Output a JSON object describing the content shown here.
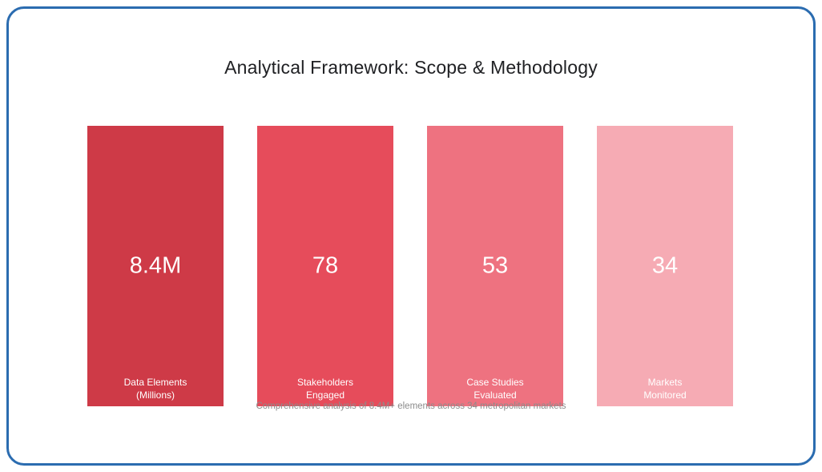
{
  "title": "Analytical Framework: Scope & Methodology",
  "caption": "Comprehensive analysis of 8.4M+ elements across 34 metropolitan markets",
  "colors": {
    "frame_border": "#2b6cb0",
    "title_text": "#202124",
    "caption_text": "#8c8c8c",
    "card_text": "#ffffff"
  },
  "cards": [
    {
      "value": "8.4M",
      "label_line1": "Data Elements",
      "label_line2": "(Millions)",
      "color": "#ce3a47"
    },
    {
      "value": "78",
      "label_line1": "Stakeholders",
      "label_line2": "Engaged",
      "color": "#e64c5b"
    },
    {
      "value": "53",
      "label_line1": "Case Studies",
      "label_line2": "Evaluated",
      "color": "#ee7280"
    },
    {
      "value": "34",
      "label_line1": "Markets",
      "label_line2": "Monitored",
      "color": "#f6abb4"
    }
  ],
  "chart_data": {
    "type": "bar",
    "title": "Analytical Framework: Scope & Methodology",
    "categories": [
      "Data Elements (Millions)",
      "Stakeholders Engaged",
      "Case Studies Evaluated",
      "Markets Monitored"
    ],
    "values": [
      8.4,
      78,
      53,
      34
    ],
    "value_labels": [
      "8.4M",
      "78",
      "53",
      "34"
    ],
    "annotation": "Comprehensive analysis of 8.4M+ elements across 34 metropolitan markets",
    "bar_colors": [
      "#ce3a47",
      "#e64c5b",
      "#ee7280",
      "#f6abb4"
    ],
    "legend": false,
    "grid": false,
    "xlabel": "",
    "ylabel": ""
  }
}
